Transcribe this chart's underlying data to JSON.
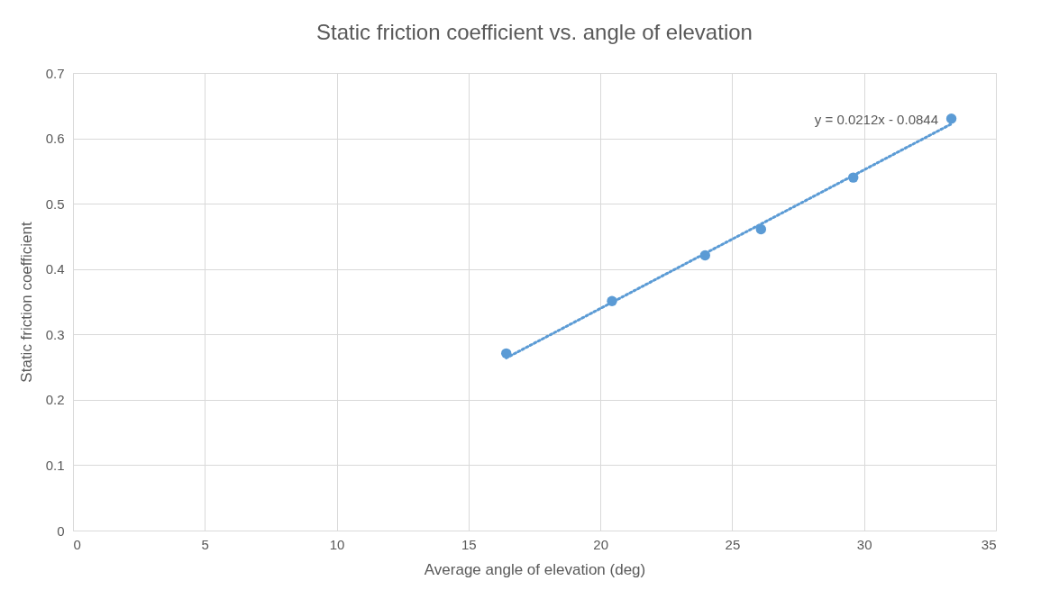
{
  "chart_data": {
    "type": "scatter",
    "title": "Static friction coefficient vs. angle of elevation",
    "xlabel": "Average angle of elevation (deg)",
    "ylabel": "Static friction coefficient",
    "series": [
      {
        "color": "#5b9bd5",
        "x": [
          16.43,
          20.44,
          23.97,
          26.09,
          29.59,
          33.31
        ],
        "values": [
          0.271,
          0.351,
          0.421,
          0.461,
          0.54,
          0.63
        ],
        "marker": "circle"
      },
      {
        "type": "line",
        "color": "#5b9bd5",
        "x": [
          16.43,
          33.31
        ],
        "values": [
          0.264,
          0.622
        ],
        "line_style": "dotted"
      }
    ],
    "annotations": [
      "y = 0.0212x - 0.0844"
    ],
    "xlim": [
      0,
      35
    ],
    "xticks": [
      0,
      5,
      10,
      15,
      20,
      25,
      30,
      35
    ],
    "ylim": [
      0,
      0.7
    ],
    "yticks": [
      0,
      0.1,
      0.2,
      0.3,
      0.4,
      0.5,
      0.6,
      0.7
    ],
    "grid": true
  }
}
